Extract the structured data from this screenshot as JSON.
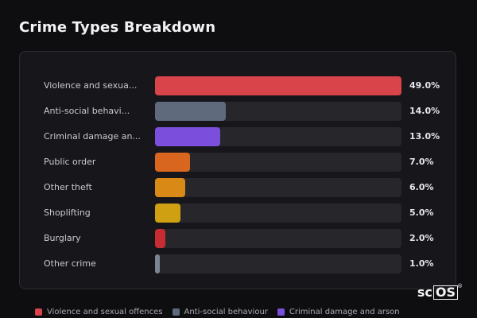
{
  "title": "Crime Types Breakdown",
  "chart_data": {
    "type": "bar",
    "orientation": "horizontal",
    "title": "Crime Types Breakdown",
    "categories": [
      "Violence and sexual offences",
      "Anti-social behaviour",
      "Criminal damage and arson",
      "Public order",
      "Other theft",
      "Shoplifting",
      "Burglary",
      "Other crime"
    ],
    "category_labels": [
      "Violence and sexua...",
      "Anti-social behavi...",
      "Criminal damage an...",
      "Public order",
      "Other theft",
      "Shoplifting",
      "Burglary",
      "Other crime"
    ],
    "values": [
      49.0,
      14.0,
      13.0,
      7.0,
      6.0,
      5.0,
      2.0,
      1.0
    ],
    "value_labels": [
      "49.0%",
      "14.0%",
      "13.0%",
      "7.0%",
      "6.0%",
      "5.0%",
      "2.0%",
      "1.0%"
    ],
    "colors": [
      "#d9434a",
      "#5f6b7c",
      "#7b4fdc",
      "#d9661e",
      "#d98a16",
      "#cfa112",
      "#c62c32",
      "#7b8494"
    ],
    "xlim": [
      0,
      49.0
    ],
    "legend_position": "bottom",
    "grid": false
  },
  "legend": [
    {
      "label": "Violence and sexual offences",
      "color": "#d9434a"
    },
    {
      "label": "Anti-social behaviour",
      "color": "#5f6b7c"
    },
    {
      "label": "Criminal damage and arson",
      "color": "#7b4fdc"
    }
  ],
  "brand": {
    "text_a": "sc",
    "text_b": "OS",
    "reg": "®"
  }
}
